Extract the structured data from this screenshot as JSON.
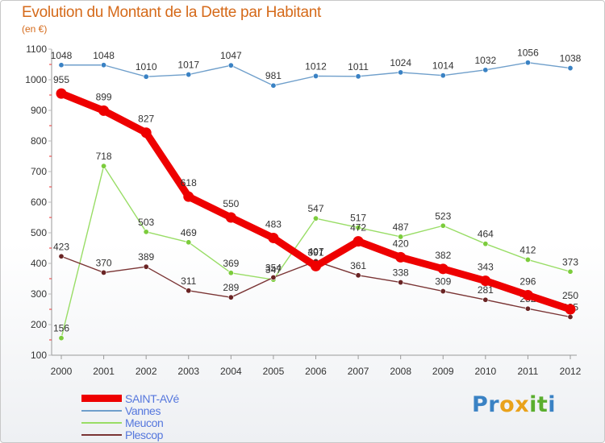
{
  "chart_data": {
    "type": "line",
    "title": "Evolution du Montant de la Dette par Habitant",
    "subtitle": "(en €)",
    "xlabel": "",
    "ylabel": "",
    "ylim": [
      100,
      1100
    ],
    "yticks": [
      100,
      200,
      300,
      400,
      500,
      600,
      700,
      800,
      900,
      1000,
      1100
    ],
    "x": [
      "2000",
      "2001",
      "2002",
      "2003",
      "2004",
      "2005",
      "2006",
      "2007",
      "2008",
      "2009",
      "2010",
      "2011",
      "2012"
    ],
    "grid": false,
    "legend_position": "bottom-left",
    "series": [
      {
        "name": "Vannes",
        "color": "#6f9fcb",
        "marker_color": "#3a82c4",
        "values": [
          1048,
          1048,
          1010,
          1017,
          1047,
          981,
          1012,
          1011,
          1024,
          1014,
          1032,
          1056,
          1038
        ]
      },
      {
        "name": "Meucon",
        "color": "#99dd66",
        "marker_color": "#7ccc3c",
        "values": [
          156,
          718,
          503,
          469,
          369,
          347,
          547,
          517,
          487,
          523,
          464,
          412,
          373
        ]
      },
      {
        "name": "Plescop",
        "color": "#7a3434",
        "marker_color": "#6a2424",
        "values": [
          423,
          370,
          389,
          311,
          289,
          354,
          407,
          361,
          338,
          309,
          281,
          252,
          225
        ]
      },
      {
        "name": "SAINT-AVé",
        "color": "#ee0000",
        "marker_color": "#ee0000",
        "values": [
          955,
          899,
          827,
          618,
          550,
          483,
          391,
          472,
          420,
          382,
          343,
          296,
          250
        ]
      }
    ],
    "legend": [
      {
        "name": "SAINT-AVé",
        "color": "#ee0000"
      },
      {
        "name": "Vannes",
        "color": "#6f9fcb"
      },
      {
        "name": "Meucon",
        "color": "#99dd66"
      },
      {
        "name": "Plescop",
        "color": "#7a3434"
      }
    ]
  },
  "brand": {
    "letters": [
      {
        "ch": "P",
        "color": "#3a82c4"
      },
      {
        "ch": "r",
        "color": "#3a82c4"
      },
      {
        "ch": "o",
        "color": "#e9a21b"
      },
      {
        "ch": "x",
        "color": "#e9a21b"
      },
      {
        "ch": "i",
        "color": "#5aae2e"
      },
      {
        "ch": "t",
        "color": "#5aae2e"
      },
      {
        "ch": "i",
        "color": "#3a82c4"
      }
    ]
  }
}
